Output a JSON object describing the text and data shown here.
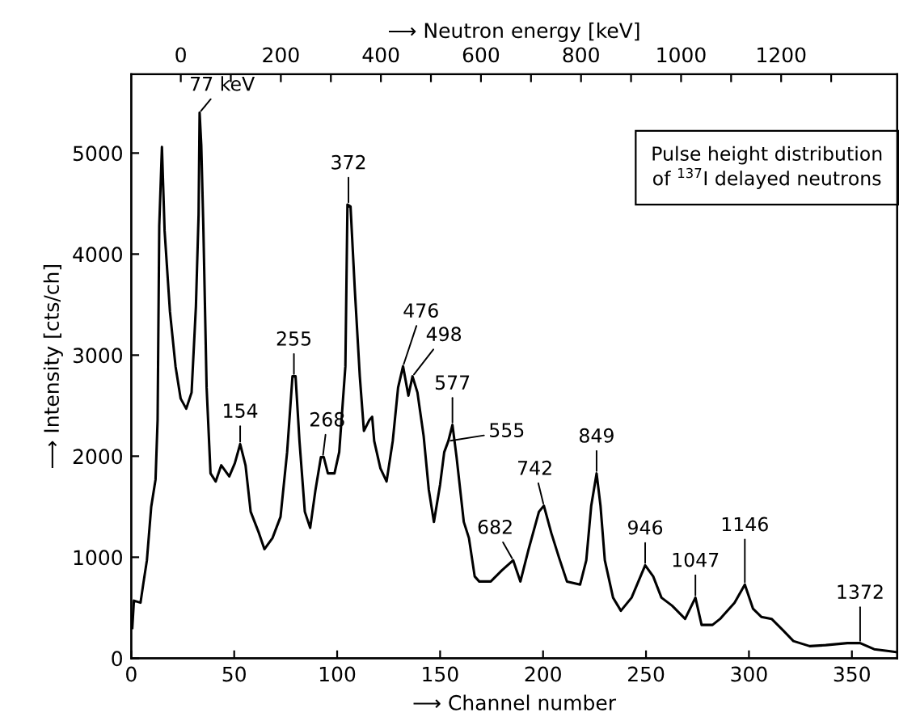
{
  "chart_data": {
    "type": "line",
    "xlabel": "⟶ Channel number",
    "ylabel": "⟶ Intensity [cts/ch]",
    "x2label": "⟶ Neutron energy [keV]",
    "xlim": [
      0,
      372
    ],
    "xticks": [
      0,
      50,
      100,
      150,
      200,
      250,
      300,
      350
    ],
    "ylim": [
      0,
      5780
    ],
    "yticks": [
      0,
      1000,
      2000,
      3000,
      4000,
      5000
    ],
    "x2lim": [
      -99,
      1432
    ],
    "x2ticks": [
      0,
      {
        "value": 100,
        "label": null
      },
      200,
      {
        "value": 300,
        "label": null
      },
      400,
      {
        "value": 500,
        "label": null
      },
      600,
      {
        "value": 700,
        "label": null
      },
      800,
      {
        "value": 900,
        "label": null
      },
      1000,
      {
        "value": 1100,
        "label": null
      },
      1200,
      {
        "value": 1300,
        "label": null
      }
    ],
    "grid": false,
    "legend": false,
    "marker": "none",
    "line_style": "solid",
    "series": [
      {
        "color": "#000000",
        "x": [
          0.5,
          1.3,
          4.5,
          5.8,
          7.6,
          9.7,
          11.8,
          12.8,
          13.6,
          14.9,
          16.2,
          18.8,
          21.5,
          24,
          26.7,
          29.3,
          31.4,
          32.7,
          33.2,
          34,
          35,
          36.6,
          38.5,
          41,
          43.7,
          47.6,
          50.3,
          52.9,
          55.5,
          58,
          62,
          64.7,
          68.6,
          72.5,
          75.7,
          78.3,
          79.8,
          81.7,
          84.3,
          86.9,
          89.5,
          92.1,
          93.5,
          95.5,
          98.7,
          101,
          104,
          105,
          106.5,
          108.6,
          111,
          113,
          115.7,
          117,
          118,
          121,
          124,
          127,
          129.6,
          132,
          134.6,
          136.6,
          139,
          142,
          144.5,
          147,
          150,
          152,
          154,
          156,
          158,
          161.5,
          164,
          166.8,
          169,
          174.6,
          180,
          185.5,
          189,
          193,
          198,
          200.4,
          204,
          207.7,
          211.6,
          218,
          221,
          223.4,
          226,
          227.9,
          230,
          234,
          237.8,
          243,
          249.6,
          253.5,
          257.5,
          262.7,
          269,
          274,
          277,
          282.3,
          286,
          293,
          298,
          302,
          306,
          311,
          316.4,
          321.6,
          329.5,
          337.3,
          347.8,
          354,
          360.8,
          368.7,
          372
        ],
        "values": [
          300,
          570,
          550,
          730,
          970,
          1500,
          1770,
          2360,
          4280,
          5060,
          4230,
          3430,
          2890,
          2570,
          2470,
          2630,
          3480,
          4390,
          5400,
          5080,
          4280,
          2680,
          1830,
          1750,
          1910,
          1800,
          1930,
          2120,
          1910,
          1450,
          1240,
          1080,
          1190,
          1400,
          2040,
          2790,
          2790,
          2150,
          1450,
          1290,
          1670,
          1990,
          1990,
          1830,
          1830,
          2040,
          2890,
          4490,
          4470,
          3640,
          2790,
          2250,
          2360,
          2390,
          2150,
          1880,
          1750,
          2150,
          2680,
          2890,
          2600,
          2790,
          2630,
          2200,
          1670,
          1350,
          1720,
          2040,
          2150,
          2310,
          1990,
          1350,
          1190,
          810,
          760,
          760,
          870,
          970,
          760,
          1080,
          1450,
          1510,
          1240,
          1000,
          760,
          730,
          970,
          1510,
          1830,
          1510,
          970,
          600,
          470,
          600,
          920,
          810,
          600,
          520,
          390,
          600,
          330,
          330,
          390,
          550,
          730,
          490,
          410,
          390,
          280,
          170,
          120,
          130,
          150,
          150,
          90,
          70,
          60
        ]
      }
    ],
    "annotations": [
      {
        "text": "77 keV",
        "x": 33.2,
        "y": 5400
      },
      {
        "text": "154",
        "x": 52.9,
        "y": 2120
      },
      {
        "text": "255",
        "x": 79,
        "y": 2790
      },
      {
        "text": "268",
        "x": 93,
        "y": 1990
      },
      {
        "text": "372",
        "x": 105.5,
        "y": 4490
      },
      {
        "text": "476",
        "x": 132,
        "y": 2890
      },
      {
        "text": "498",
        "x": 136.6,
        "y": 2790
      },
      {
        "text": "577",
        "x": 156,
        "y": 2310
      },
      {
        "text": "555",
        "x": 154,
        "y": 2150
      },
      {
        "text": "682",
        "x": 185.5,
        "y": 970
      },
      {
        "text": "742",
        "x": 200.4,
        "y": 1510
      },
      {
        "text": "849",
        "x": 226,
        "y": 1830
      },
      {
        "text": "946",
        "x": 249.6,
        "y": 920
      },
      {
        "text": "1047",
        "x": 274,
        "y": 600
      },
      {
        "text": "1146",
        "x": 298,
        "y": 730
      },
      {
        "text": "1372",
        "x": 354,
        "y": 150
      },
      "Pulse height distribution\nof $^{137}$I delayed neutrons"
    ]
  }
}
